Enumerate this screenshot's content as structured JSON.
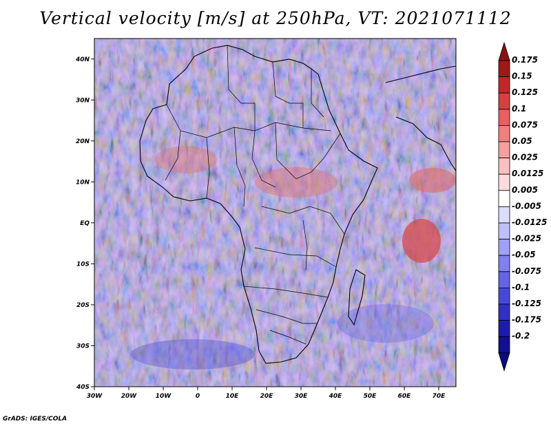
{
  "title": "Vertical velocity [m/s] at 250hPa, VT: 2021071112",
  "credit": "GrADS: IGES/COLA",
  "map": {
    "lon_labels": [
      "30W",
      "20W",
      "10W",
      "0",
      "10E",
      "20E",
      "30E",
      "40E",
      "50E",
      "60E",
      "70E"
    ],
    "lat_labels": [
      "40N",
      "30N",
      "20N",
      "10N",
      "EQ",
      "10S",
      "20S",
      "30S",
      "40S"
    ]
  },
  "colorbar": {
    "labels": [
      "0.175",
      "0.15",
      "0.125",
      "0.1",
      "0.075",
      "0.05",
      "0.025",
      "0.0125",
      "0.005",
      "-0.005",
      "-0.0125",
      "-0.025",
      "-0.05",
      "-0.075",
      "-0.1",
      "-0.125",
      "-0.175",
      "-0.2"
    ],
    "colors": [
      "#a01818",
      "#c02828",
      "#d84040",
      "#e86060",
      "#f08080",
      "#f4a0a0",
      "#f8c0c0",
      "#fcdcdc",
      "#ffffff",
      "#dcdcfc",
      "#c0c0f8",
      "#a0a0f4",
      "#8080ee",
      "#6464e4",
      "#4848d8",
      "#3030c4",
      "#1c1cac",
      "#101090"
    ],
    "top_color": "#8c1010",
    "bottom_color": "#0c0c80"
  }
}
